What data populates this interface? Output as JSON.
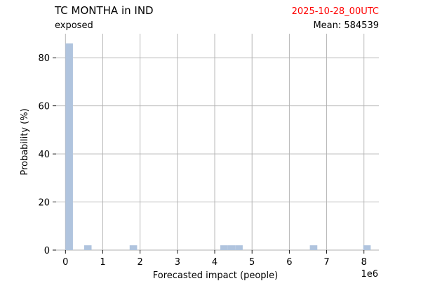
{
  "header": {
    "title": "TC MONTHA in IND",
    "subtitle": "exposed",
    "date": "2025-10-28_00UTC",
    "mean": "Mean: 584539"
  },
  "colors": {
    "bar": "#b0c4de",
    "grid": "#b0b0b0",
    "date": "#ff0000"
  },
  "chart_data": {
    "type": "bar",
    "xlabel": "Forecasted impact (people)",
    "ylabel": "Probability (%)",
    "x_offset_text": "1e6",
    "xlim": [
      -0.25,
      8.4
    ],
    "ylim": [
      0,
      90
    ],
    "xticks": [
      0,
      1,
      2,
      3,
      4,
      5,
      6,
      7,
      8
    ],
    "yticks": [
      0,
      20,
      40,
      60,
      80
    ],
    "grid": true,
    "bin_width": 0.2,
    "bars": [
      {
        "x": 0.0,
        "value": 86
      },
      {
        "x": 0.5,
        "value": 2
      },
      {
        "x": 1.72,
        "value": 2
      },
      {
        "x": 4.15,
        "value": 2
      },
      {
        "x": 4.35,
        "value": 2
      },
      {
        "x": 4.55,
        "value": 2
      },
      {
        "x": 6.55,
        "value": 2
      },
      {
        "x": 7.98,
        "value": 2
      }
    ]
  }
}
